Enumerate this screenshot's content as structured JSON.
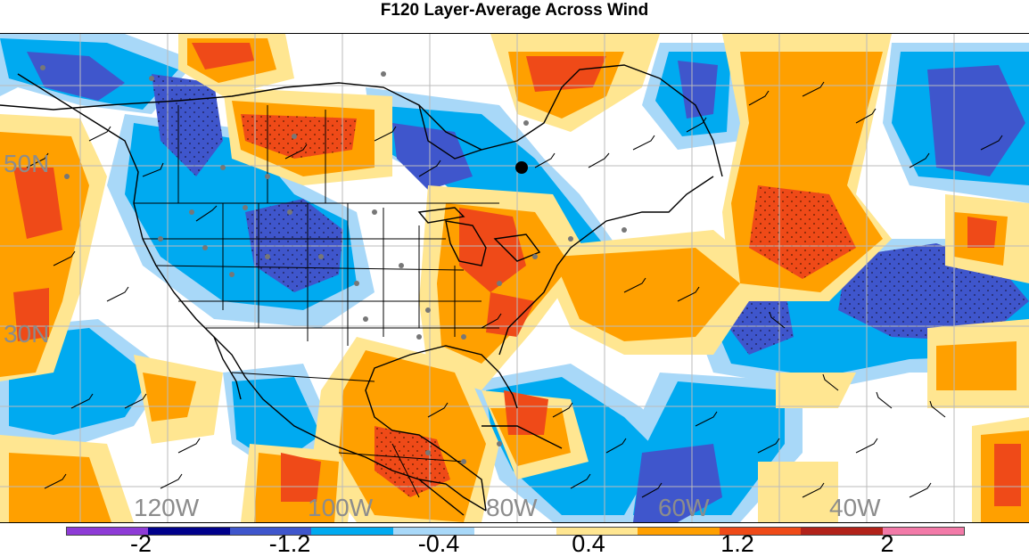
{
  "title": "F120 Layer-Average Across Wind",
  "map": {
    "lat_labels": [
      {
        "text": "50N"
      },
      {
        "text": "30N"
      }
    ],
    "lon_labels": [
      {
        "text": "120W"
      },
      {
        "text": "100W"
      },
      {
        "text": "80W"
      },
      {
        "text": "60W"
      },
      {
        "text": "40W"
      }
    ],
    "marker": {
      "type": "black-dot"
    }
  },
  "colorbar": {
    "colors": [
      "#8e3bd6",
      "#00008b",
      "#3f56cc",
      "#00aaf0",
      "#a8d8f8",
      "#ffffff",
      "#ffe691",
      "#ffa000",
      "#ef4a18",
      "#b2221a",
      "#f27aa8"
    ],
    "tick_labels": [
      "-2",
      "-1.2",
      "-0.4",
      "0.4",
      "1.2",
      "2"
    ]
  },
  "legend_palette": {
    "strong_negative": "#3f56cc",
    "negative": "#00aaf0",
    "weak_negative": "#a8d8f8",
    "neutral": "#ffffff",
    "weak_positive": "#ffe691",
    "positive": "#ffa000",
    "strong_positive": "#ef4a18"
  }
}
